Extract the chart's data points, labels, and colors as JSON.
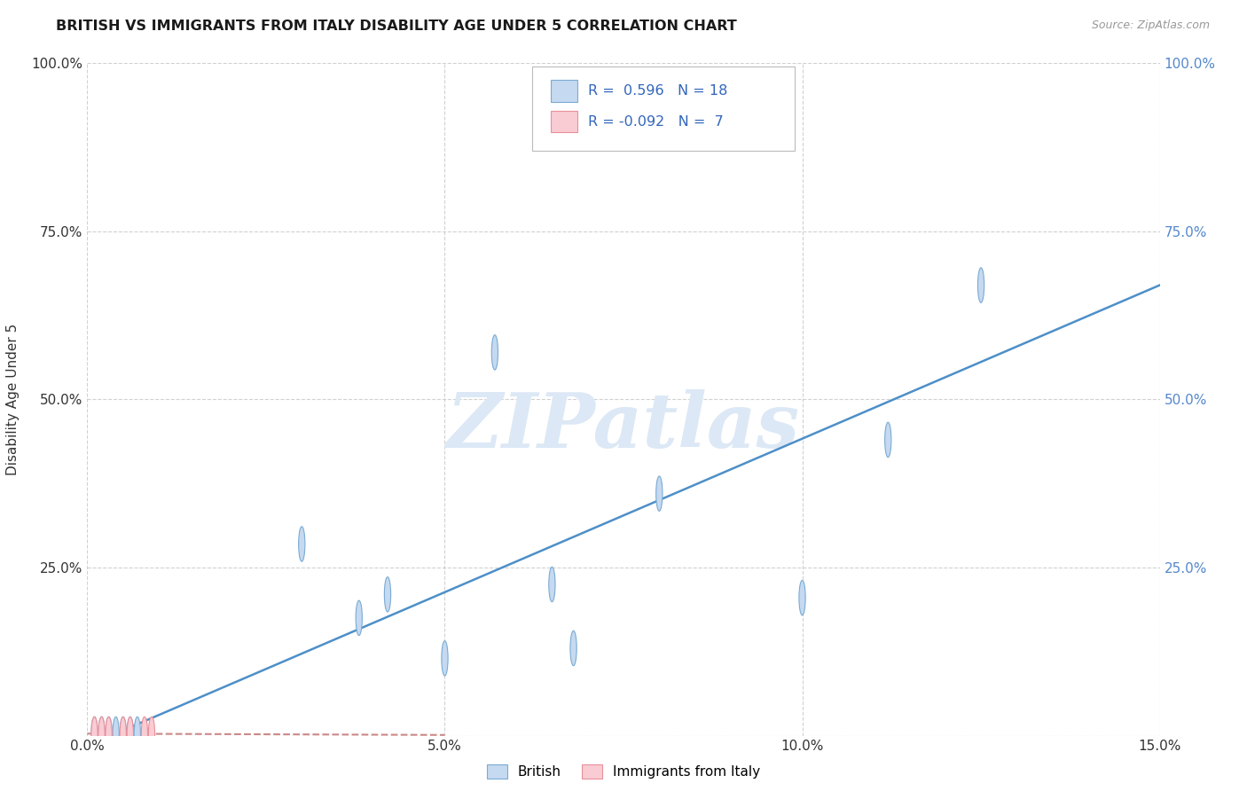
{
  "title": "BRITISH VS IMMIGRANTS FROM ITALY DISABILITY AGE UNDER 5 CORRELATION CHART",
  "source": "Source: ZipAtlas.com",
  "ylabel": "Disability Age Under 5",
  "xlim": [
    0,
    0.15
  ],
  "ylim": [
    0,
    1.0
  ],
  "xticks": [
    0.0,
    0.05,
    0.1,
    0.15
  ],
  "xtick_labels": [
    "0.0%",
    "5.0%",
    "10.0%",
    "15.0%"
  ],
  "yticks": [
    0.0,
    0.25,
    0.5,
    0.75,
    1.0
  ],
  "ytick_labels": [
    "",
    "25.0%",
    "50.0%",
    "75.0%",
    "100.0%"
  ],
  "british_x": [
    0.001,
    0.002,
    0.003,
    0.004,
    0.005,
    0.006,
    0.007,
    0.03,
    0.038,
    0.042,
    0.05,
    0.057,
    0.065,
    0.068,
    0.08,
    0.1,
    0.112,
    0.125
  ],
  "british_y": [
    0.002,
    0.002,
    0.002,
    0.002,
    0.002,
    0.002,
    0.002,
    0.285,
    0.175,
    0.21,
    0.115,
    0.57,
    0.225,
    0.13,
    0.36,
    0.205,
    0.44,
    0.67
  ],
  "british_color": "#c5d9f0",
  "british_edge": "#7aabd4",
  "british_N": 18,
  "british_R": 0.596,
  "italy_x": [
    0.001,
    0.002,
    0.003,
    0.005,
    0.006,
    0.008,
    0.009
  ],
  "italy_y": [
    0.002,
    0.002,
    0.002,
    0.002,
    0.002,
    0.002,
    0.002
  ],
  "italy_color": "#f9ccd4",
  "italy_edge": "#e8909a",
  "italy_N": 7,
  "italy_R": -0.092,
  "trendline_british_color": "#4d8fc8",
  "trendline_italy_color": "#cc8888",
  "watermark_text": "ZIPatlas",
  "watermark_color": "#dce8f5",
  "background_color": "#ffffff",
  "grid_color": "#cccccc",
  "legend_british_label": "British",
  "legend_italy_label": "Immigrants from Italy"
}
